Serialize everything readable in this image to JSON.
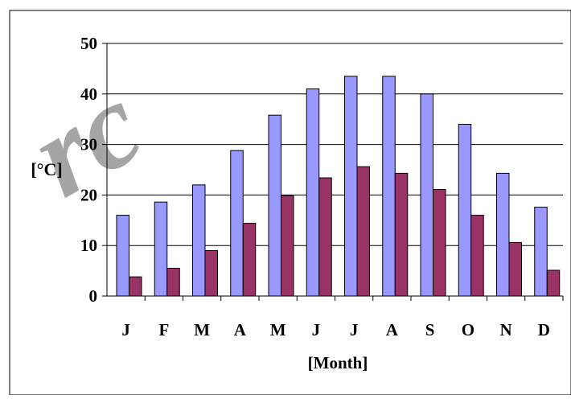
{
  "chart_data": {
    "type": "bar",
    "xlabel": "[Month]",
    "ylabel": "[°C]",
    "ylim": [
      0,
      50
    ],
    "yticks": [
      0,
      10,
      20,
      30,
      40,
      50
    ],
    "grid": true,
    "categories": [
      "J",
      "F",
      "M",
      "A",
      "M",
      "J",
      "J",
      "A",
      "S",
      "O",
      "N",
      "D"
    ],
    "series": [
      {
        "values": [
          16,
          18.6,
          22,
          28.8,
          35.8,
          41,
          43.5,
          43.5,
          40,
          34,
          24.3,
          17.6
        ],
        "color": "#9999ff"
      },
      {
        "values": [
          3.8,
          5.5,
          9,
          14.4,
          19.9,
          23.4,
          25.6,
          24.3,
          21.1,
          16,
          10.6,
          5.1
        ],
        "color": "#993366"
      }
    ]
  },
  "watermark": "rc"
}
